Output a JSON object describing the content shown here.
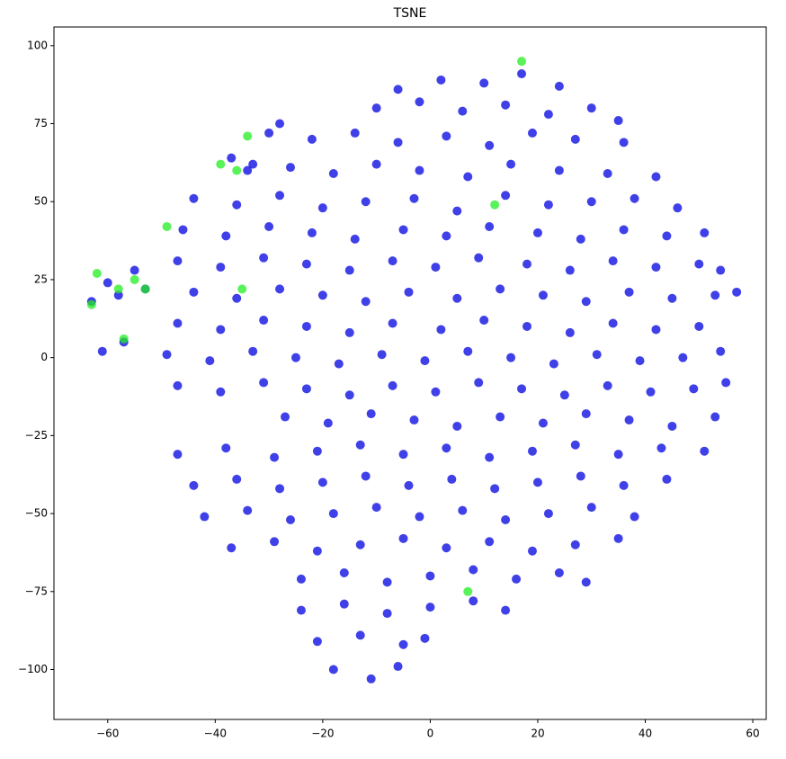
{
  "chart_data": {
    "type": "scatter",
    "title": "TSNE",
    "xlim": [
      -70,
      62.5
    ],
    "ylim": [
      -116,
      106
    ],
    "xticks": [
      {
        "value": -60,
        "label": "−60"
      },
      {
        "value": -40,
        "label": "−40"
      },
      {
        "value": -20,
        "label": "−20"
      },
      0,
      20,
      40,
      60
    ],
    "yticks": [
      {
        "value": -100,
        "label": "−100"
      },
      {
        "value": -75,
        "label": "−75"
      },
      {
        "value": -50,
        "label": "−50"
      },
      {
        "value": -25,
        "label": "−25"
      },
      0,
      25,
      50,
      75,
      100
    ],
    "series": [
      {
        "color": "#0000e0",
        "x": [
          -6,
          2,
          10,
          17,
          24,
          -10,
          -2,
          6,
          14,
          22,
          30,
          35,
          -22,
          -14,
          -6,
          3,
          11,
          19,
          27,
          36,
          -26,
          -18,
          -10,
          -2,
          7,
          15,
          24,
          33,
          42,
          -44,
          -36,
          -28,
          -20,
          -12,
          -3,
          5,
          14,
          22,
          30,
          38,
          46,
          -46,
          -38,
          -30,
          -22,
          -14,
          -5,
          3,
          11,
          20,
          28,
          36,
          44,
          51,
          -47,
          -39,
          -31,
          -23,
          -15,
          -7,
          1,
          9,
          18,
          26,
          34,
          42,
          50,
          54,
          -44,
          -36,
          -28,
          -20,
          -12,
          -4,
          5,
          13,
          21,
          29,
          37,
          45,
          53,
          57,
          -47,
          -39,
          -31,
          -23,
          -15,
          -7,
          2,
          10,
          18,
          26,
          34,
          42,
          50,
          -49,
          -41,
          -33,
          -25,
          -17,
          -9,
          -1,
          7,
          15,
          23,
          31,
          39,
          47,
          54,
          -47,
          -39,
          -31,
          -23,
          -15,
          -7,
          1,
          9,
          17,
          25,
          33,
          41,
          49,
          55,
          -27,
          -19,
          -11,
          -3,
          5,
          13,
          21,
          29,
          37,
          45,
          53,
          -47,
          -38,
          -29,
          -21,
          -13,
          -5,
          3,
          11,
          19,
          27,
          35,
          43,
          51,
          -44,
          -36,
          -28,
          -20,
          -12,
          -4,
          4,
          12,
          20,
          28,
          36,
          44,
          -42,
          -34,
          -26,
          -18,
          -10,
          -2,
          6,
          14,
          22,
          30,
          38,
          -37,
          -29,
          -21,
          -13,
          -5,
          3,
          11,
          19,
          27,
          35,
          -24,
          -16,
          -8,
          0,
          8,
          16,
          24,
          29,
          -24,
          -16,
          -8,
          0,
          8,
          14,
          -21,
          -13,
          -5,
          -1,
          -18,
          -11,
          -6,
          -63,
          -60,
          -58,
          -55,
          -53,
          -61,
          -57,
          -37,
          -34,
          -30,
          -28,
          -33
        ],
        "values": [
          86,
          89,
          88,
          91,
          87,
          80,
          82,
          79,
          81,
          78,
          80,
          76,
          70,
          72,
          69,
          71,
          68,
          72,
          70,
          69,
          61,
          59,
          62,
          60,
          58,
          62,
          60,
          59,
          58,
          51,
          49,
          52,
          48,
          50,
          51,
          47,
          52,
          49,
          50,
          51,
          48,
          41,
          39,
          42,
          40,
          38,
          41,
          39,
          42,
          40,
          38,
          41,
          39,
          40,
          31,
          29,
          32,
          30,
          28,
          31,
          29,
          32,
          30,
          28,
          31,
          29,
          30,
          28,
          21,
          19,
          22,
          20,
          18,
          21,
          19,
          22,
          20,
          18,
          21,
          19,
          20,
          21,
          11,
          9,
          12,
          10,
          8,
          11,
          9,
          12,
          10,
          8,
          11,
          9,
          10,
          1,
          -1,
          2,
          0,
          -2,
          1,
          -1,
          2,
          0,
          -2,
          1,
          -1,
          0,
          2,
          -9,
          -11,
          -8,
          -10,
          -12,
          -9,
          -11,
          -8,
          -10,
          -12,
          -9,
          -11,
          -10,
          -8,
          -19,
          -21,
          -18,
          -20,
          -22,
          -19,
          -21,
          -18,
          -20,
          -22,
          -19,
          -31,
          -29,
          -32,
          -30,
          -28,
          -31,
          -29,
          -32,
          -30,
          -28,
          -31,
          -29,
          -30,
          -41,
          -39,
          -42,
          -40,
          -38,
          -41,
          -39,
          -42,
          -40,
          -38,
          -41,
          -39,
          -51,
          -49,
          -52,
          -50,
          -48,
          -51,
          -49,
          -52,
          -50,
          -48,
          -51,
          -61,
          -59,
          -62,
          -60,
          -58,
          -61,
          -59,
          -62,
          -60,
          -58,
          -71,
          -69,
          -72,
          -70,
          -68,
          -71,
          -69,
          -72,
          -81,
          -79,
          -82,
          -80,
          -78,
          -81,
          -91,
          -89,
          -92,
          -90,
          -100,
          -103,
          -99,
          18,
          24,
          20,
          28,
          22,
          2,
          5,
          64,
          60,
          72,
          75,
          62
        ]
      },
      {
        "color": "#22ee22",
        "x": [
          -62,
          -63,
          -58,
          -55,
          -53,
          -57,
          -39,
          -36,
          -34,
          -49,
          -35,
          12,
          17,
          7
        ],
        "values": [
          27,
          17,
          22,
          25,
          22,
          6,
          62,
          60,
          71,
          42,
          22,
          49,
          95,
          -75
        ]
      }
    ]
  }
}
